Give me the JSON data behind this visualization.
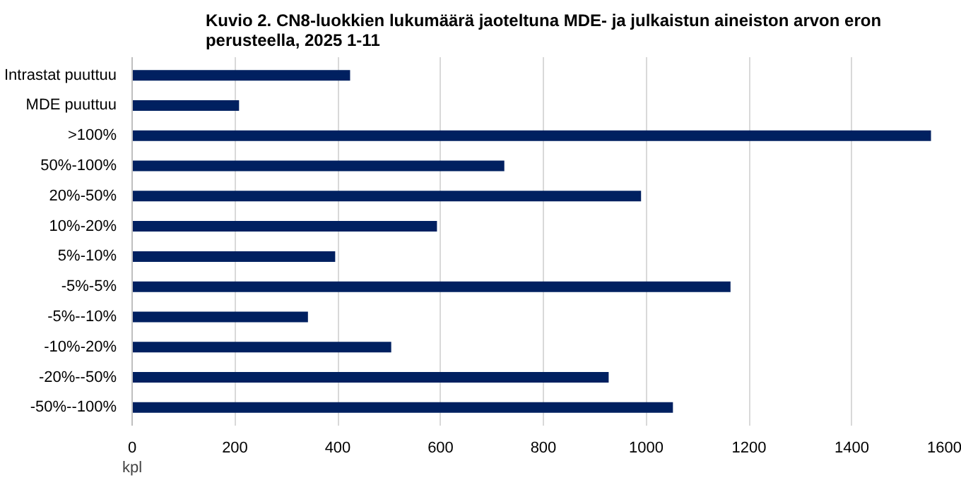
{
  "chart_data": {
    "type": "bar",
    "orientation": "horizontal",
    "title": "Kuvio 2. CN8-luokkien lukumäärä jaoteltuna MDE- ja julkaistun aineiston arvon eron\nperusteella, 2025 1-11",
    "xlabel": "kpl",
    "categories": [
      "Intrastat puuttuu",
      "MDE puuttuu",
      ">100%",
      "50%-100%",
      "20%-50%",
      "10%-20%",
      "5%-10%",
      "-5%-5%",
      "-5%--10%",
      "-10%-20%",
      "-20%--50%",
      "-50%--100%"
    ],
    "values": [
      424,
      208,
      1554,
      724,
      990,
      593,
      395,
      1164,
      342,
      504,
      927,
      1052
    ],
    "color": "#002060",
    "xlim": [
      0,
      1600
    ],
    "xticks": [
      0,
      200,
      400,
      600,
      800,
      1000,
      1200,
      1400,
      1600
    ],
    "grid": "x"
  }
}
